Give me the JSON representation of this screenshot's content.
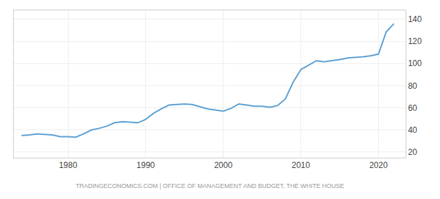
{
  "chart_data": {
    "type": "line",
    "annotations": [
      "TRADINGECONOMICS.COM | OFFICE OF MANAGEMENT AND BUDGET, THE WHITE HOUSE"
    ],
    "x": [
      1974,
      1975,
      1976,
      1977,
      1978,
      1979,
      1980,
      1981,
      1982,
      1983,
      1984,
      1985,
      1986,
      1987,
      1988,
      1989,
      1990,
      1991,
      1992,
      1993,
      1994,
      1995,
      1996,
      1997,
      1998,
      1999,
      2000,
      2001,
      2002,
      2003,
      2004,
      2005,
      2006,
      2007,
      2008,
      2009,
      2010,
      2011,
      2012,
      2013,
      2014,
      2015,
      2016,
      2017,
      2018,
      2019,
      2020,
      2021,
      2022
    ],
    "values": [
      35.0,
      35.5,
      36.5,
      36.0,
      35.5,
      34.0,
      34.0,
      33.5,
      36.5,
      40.0,
      41.5,
      43.5,
      46.5,
      47.5,
      47.0,
      46.5,
      49.5,
      55.0,
      59.0,
      62.5,
      63.0,
      63.5,
      63.0,
      61.0,
      59.0,
      58.0,
      57.0,
      59.5,
      63.5,
      62.5,
      61.5,
      61.5,
      60.5,
      62.0,
      68.0,
      83.0,
      94.5,
      98.5,
      102.5,
      101.5,
      102.5,
      103.5,
      105.0,
      105.5,
      106.0,
      107.0,
      108.5,
      128.5,
      136.0
    ],
    "color": "#5a9fd4",
    "xlim": [
      1973,
      2023.5
    ],
    "xticks": [
      1980,
      1990,
      2000,
      2010,
      2020
    ],
    "ylim": [
      15,
      148
    ],
    "yticks": [
      20,
      40,
      60,
      80,
      100,
      120,
      140
    ],
    "grid": true
  }
}
